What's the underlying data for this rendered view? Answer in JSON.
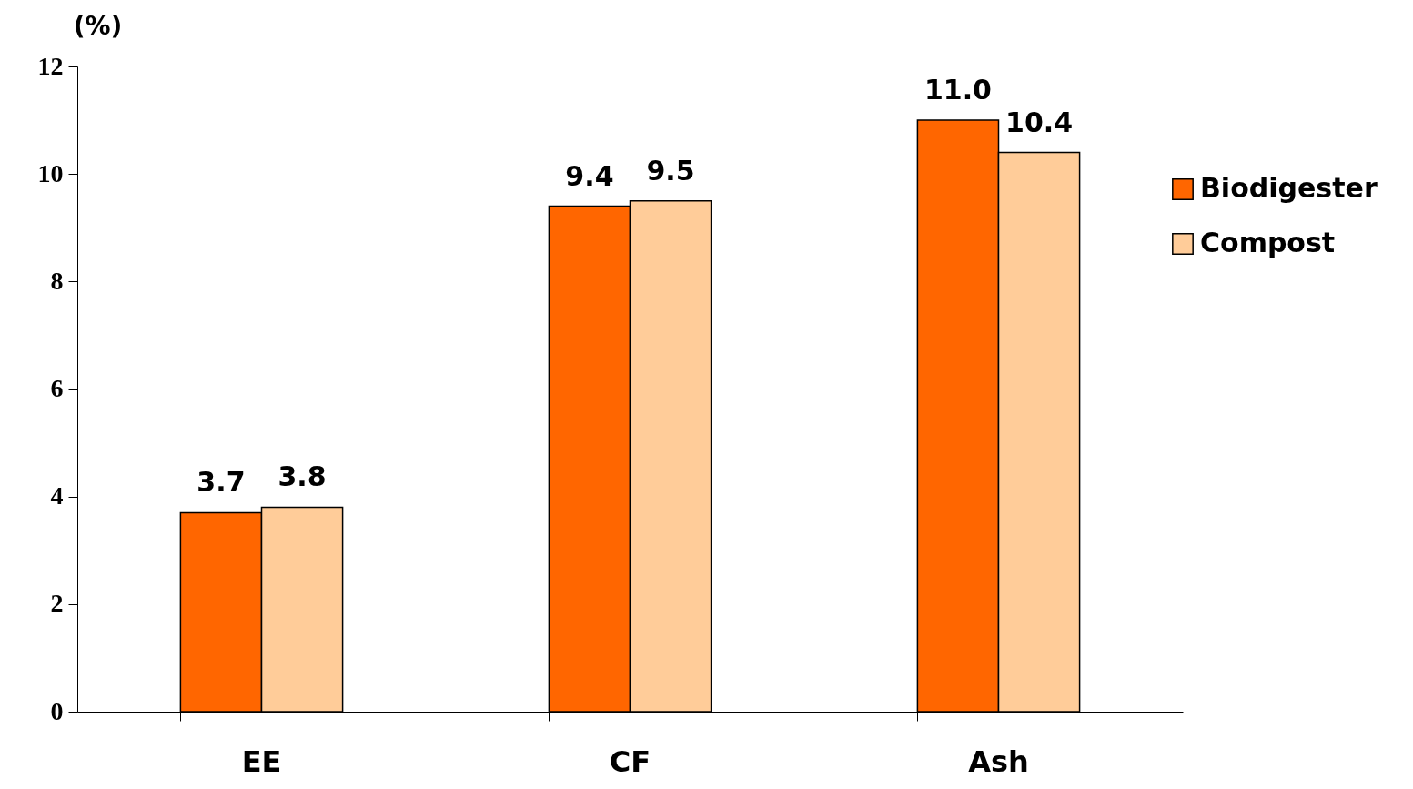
{
  "chart_data": {
    "type": "bar",
    "ylabel": "(%)",
    "categories": [
      "EE",
      "CF",
      "Ash"
    ],
    "series": [
      {
        "name": "Biodigester",
        "color": "#ff6600",
        "values": [
          3.7,
          9.4,
          11.0
        ],
        "value_labels": [
          "3.7",
          "9.4",
          "11.0"
        ]
      },
      {
        "name": "Compost",
        "color": "#ffcc99",
        "values": [
          3.8,
          9.5,
          10.4
        ],
        "value_labels": [
          "3.8",
          "9.5",
          "10.4"
        ]
      }
    ],
    "ylim": [
      0,
      12
    ],
    "yticks": [
      0,
      2,
      4,
      6,
      8,
      10,
      12
    ],
    "grid": false,
    "legend": "right"
  }
}
